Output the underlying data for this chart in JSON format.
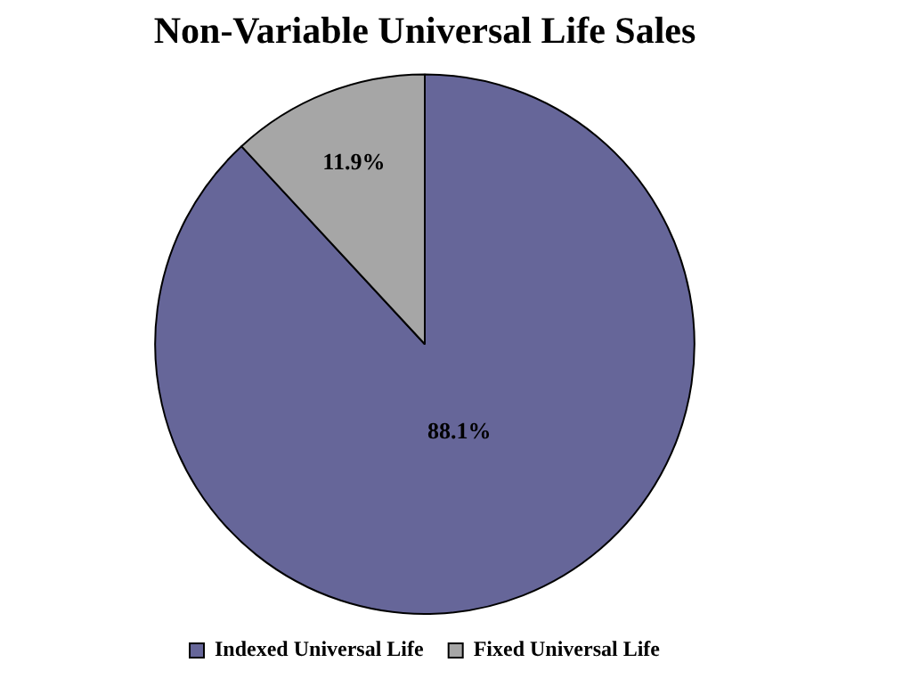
{
  "chart_data": {
    "type": "pie",
    "title": "Non-Variable Universal Life Sales",
    "categories": [
      "Indexed Universal Life",
      "Fixed Universal Life"
    ],
    "values": [
      88.1,
      11.9
    ],
    "colors": [
      "#666699",
      "#a6a6a6"
    ],
    "value_labels": [
      "88.1%",
      "11.9%"
    ],
    "legend": "bottom"
  }
}
